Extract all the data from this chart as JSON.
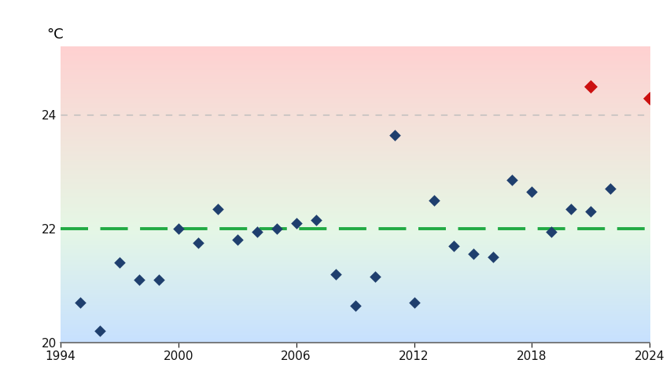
{
  "ylabel_text": "°C",
  "xlim": [
    1994,
    2024
  ],
  "ylim": [
    20.0,
    25.2
  ],
  "yticks": [
    20,
    22,
    24
  ],
  "xticks": [
    1994,
    2000,
    2006,
    2012,
    2018,
    2024
  ],
  "mean_line": 22.0,
  "reference_line": 24.0,
  "data_blue": [
    [
      1995,
      20.7
    ],
    [
      1996,
      20.2
    ],
    [
      1997,
      21.4
    ],
    [
      1998,
      21.1
    ],
    [
      1999,
      21.1
    ],
    [
      2000,
      22.0
    ],
    [
      2001,
      21.75
    ],
    [
      2002,
      22.35
    ],
    [
      2003,
      21.8
    ],
    [
      2004,
      21.95
    ],
    [
      2005,
      22.0
    ],
    [
      2006,
      22.1
    ],
    [
      2007,
      22.15
    ],
    [
      2008,
      21.2
    ],
    [
      2009,
      20.65
    ],
    [
      2010,
      21.15
    ],
    [
      2011,
      23.65
    ],
    [
      2012,
      20.7
    ],
    [
      2013,
      22.5
    ],
    [
      2014,
      21.7
    ],
    [
      2015,
      21.55
    ],
    [
      2016,
      21.5
    ],
    [
      2017,
      22.85
    ],
    [
      2018,
      22.65
    ],
    [
      2019,
      21.95
    ],
    [
      2020,
      22.35
    ],
    [
      2021,
      22.3
    ],
    [
      2022,
      22.7
    ]
  ],
  "data_red": [
    [
      2021,
      24.5
    ],
    [
      2024,
      24.3
    ]
  ],
  "blue_color": "#1f3f6e",
  "red_color": "#cc1111",
  "green_line_color": "#22aa44",
  "ref_line_color": "#bbbbbb",
  "bg_pink": [
    1.0,
    0.82,
    0.82
  ],
  "bg_green": [
    0.9,
    0.97,
    0.9
  ],
  "bg_blue": [
    0.78,
    0.88,
    1.0
  ]
}
